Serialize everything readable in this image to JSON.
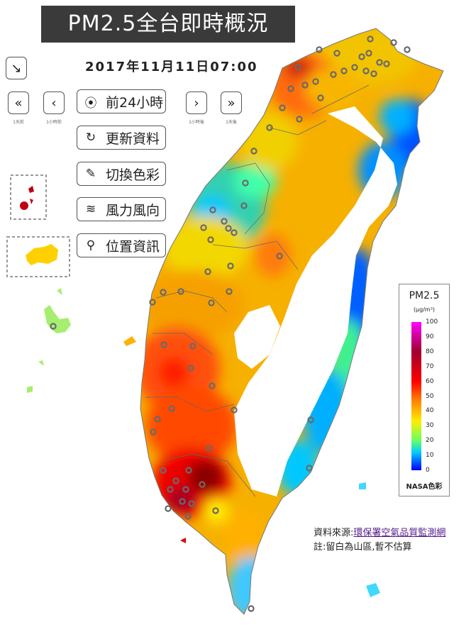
{
  "title": "PM2.5全台即時概況",
  "timestamp": "2017年11月11日07:00",
  "controls": {
    "expand_icon": "arrow-down-right-icon",
    "nav": [
      {
        "glyph": "«",
        "caption": "1天前",
        "icon": "double-chevron-left-icon"
      },
      {
        "glyph": "‹",
        "caption": "1小時前",
        "icon": "chevron-left-icon"
      },
      {
        "glyph": "›",
        "caption": "1小時後",
        "icon": "chevron-right-icon"
      },
      {
        "glyph": "»",
        "caption": "1天後",
        "icon": "double-chevron-right-icon"
      }
    ],
    "actions": [
      {
        "icon_glyph": "⦿",
        "icon": "play-circle-icon",
        "label": "前24小時"
      },
      {
        "icon_glyph": "↻",
        "icon": "refresh-icon",
        "label": "更新資料"
      },
      {
        "icon_glyph": "✎",
        "icon": "brush-icon",
        "label": "切換色彩"
      },
      {
        "icon_glyph": "≋",
        "icon": "wind-icon",
        "label": "風力風向"
      },
      {
        "icon_glyph": "⚲",
        "icon": "map-pin-icon",
        "label": "位置資訊"
      }
    ]
  },
  "legend": {
    "title": "PM2.5",
    "unit": "(μg/m³)",
    "ticks": [
      "100",
      "90",
      "80",
      "70",
      "60",
      "50",
      "40",
      "30",
      "20",
      "10",
      "0"
    ],
    "footer": "NASA色彩",
    "colors": [
      "#ff00ff",
      "#a00030",
      "#ff0000",
      "#ff7a00",
      "#ffee00",
      "#66ff66",
      "#00ccff",
      "#0000ff"
    ]
  },
  "source": {
    "prefix": "資料來源:",
    "link": "環保署空氣品質監測網",
    "note": "註:留白為山區,暫不估算"
  }
}
